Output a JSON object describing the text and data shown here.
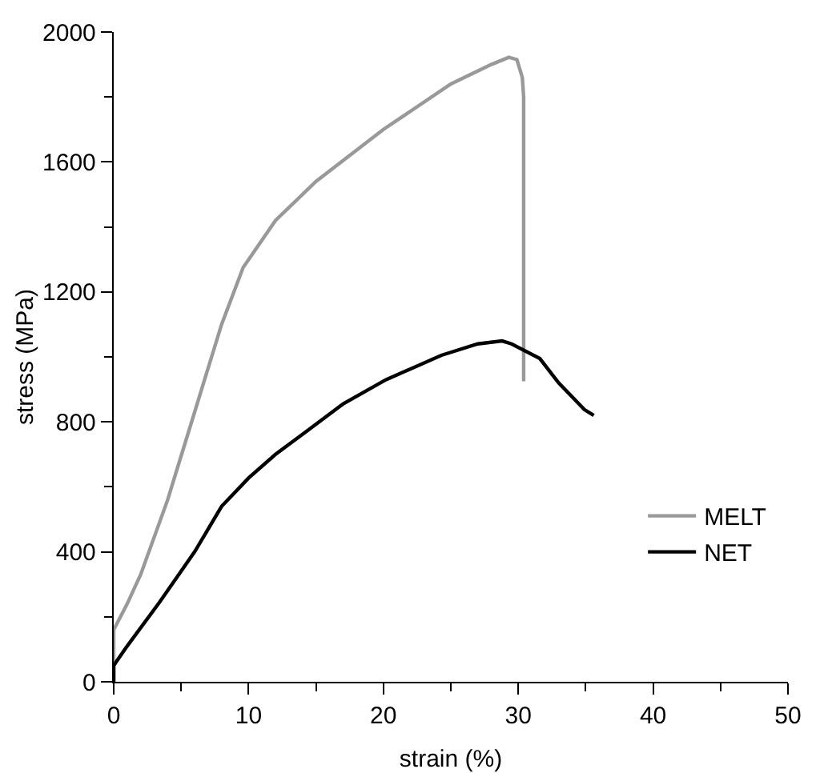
{
  "chart_data": {
    "type": "line",
    "xlabel": "strain (%)",
    "ylabel": "stress (MPa)",
    "xlim": [
      0,
      50
    ],
    "xticks": [
      0,
      10,
      20,
      30,
      40,
      50
    ],
    "ylim": [
      0,
      2000
    ],
    "yticks": [
      0,
      400,
      800,
      1200,
      1600,
      2000
    ],
    "grid": false,
    "legend": "bottom right",
    "marker": "none",
    "line_style": "solid",
    "series": [
      {
        "name": "MELT",
        "color": "#999999",
        "x": [
          0,
          0,
          1,
          2,
          4,
          6,
          8,
          9.6,
          12,
          15,
          20,
          25,
          28,
          29.3,
          29.9,
          30.3,
          30.4,
          30.4
        ],
        "values": [
          0,
          160,
          240,
          330,
          560,
          830,
          1100,
          1275,
          1420,
          1540,
          1700,
          1840,
          1900,
          1922,
          1915,
          1860,
          1800,
          925
        ]
      },
      {
        "name": "NET",
        "color": "#000000",
        "x": [
          0,
          0,
          1,
          3.4,
          6,
          8,
          10,
          12,
          14.1,
          17,
          20.2,
          24.3,
          27,
          28.8,
          29.5,
          31.6,
          33,
          34.9,
          35.6
        ],
        "values": [
          0,
          50,
          110,
          245,
          400,
          540,
          627,
          700,
          765,
          855,
          930,
          1005,
          1040,
          1049,
          1040,
          995,
          920,
          838,
          820
        ]
      }
    ]
  }
}
